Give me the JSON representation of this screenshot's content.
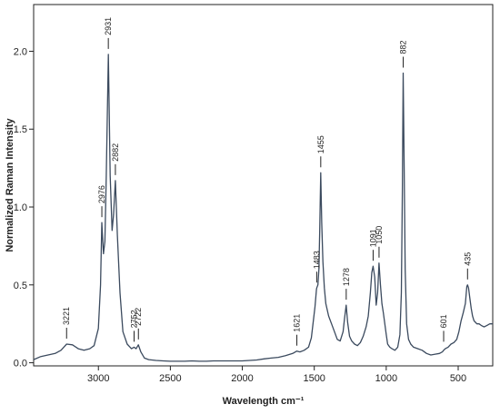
{
  "chart_data": {
    "type": "line",
    "title": "",
    "xlabel": "Wavelength cm⁻¹",
    "ylabel": "Normalized Raman Intensity",
    "xlim": [
      3450,
      260
    ],
    "ylim": [
      -0.02,
      2.3
    ],
    "x_reversed": true,
    "grid": false,
    "legend": "none",
    "line_color": "#3b4a5e",
    "x_ticks": [
      3000,
      2500,
      2000,
      1500,
      1000,
      500
    ],
    "y_ticks": [
      0.0,
      0.5,
      1.0,
      1.5,
      2.0
    ],
    "y_tick_labels": [
      "0.0",
      "0.5",
      "1.0",
      "1.5",
      "2.0"
    ],
    "series": [
      {
        "x": [
          3450,
          3400,
          3350,
          3300,
          3260,
          3221,
          3180,
          3140,
          3100,
          3060,
          3030,
          3000,
          2985,
          2976,
          2965,
          2955,
          2945,
          2931,
          2918,
          2905,
          2895,
          2882,
          2868,
          2850,
          2830,
          2800,
          2770,
          2752,
          2738,
          2722,
          2705,
          2680,
          2650,
          2600,
          2550,
          2500,
          2450,
          2400,
          2350,
          2300,
          2250,
          2200,
          2150,
          2100,
          2050,
          2000,
          1950,
          1900,
          1850,
          1800,
          1750,
          1700,
          1650,
          1621,
          1600,
          1570,
          1540,
          1520,
          1505,
          1495,
          1485,
          1483,
          1475,
          1468,
          1462,
          1455,
          1448,
          1440,
          1430,
          1420,
          1400,
          1380,
          1360,
          1340,
          1320,
          1300,
          1290,
          1278,
          1268,
          1255,
          1240,
          1220,
          1200,
          1180,
          1160,
          1140,
          1125,
          1110,
          1100,
          1091,
          1080,
          1070,
          1060,
          1050,
          1040,
          1030,
          1020,
          1010,
          1000,
          990,
          975,
          960,
          940,
          920,
          905,
          895,
          888,
          882,
          876,
          868,
          858,
          845,
          830,
          810,
          780,
          750,
          720,
          690,
          660,
          630,
          610,
          601,
          590,
          570,
          550,
          530,
          510,
          495,
          480,
          465,
          450,
          440,
          435,
          428,
          420,
          410,
          400,
          390,
          380,
          370,
          355,
          340,
          320,
          300,
          280,
          260
        ],
        "y": [
          0.02,
          0.04,
          0.05,
          0.06,
          0.08,
          0.12,
          0.115,
          0.09,
          0.08,
          0.09,
          0.11,
          0.22,
          0.5,
          0.9,
          0.7,
          0.78,
          1.2,
          1.98,
          1.2,
          0.85,
          0.95,
          1.17,
          0.82,
          0.45,
          0.2,
          0.12,
          0.09,
          0.1,
          0.09,
          0.115,
          0.07,
          0.03,
          0.02,
          0.015,
          0.012,
          0.01,
          0.01,
          0.01,
          0.012,
          0.01,
          0.01,
          0.012,
          0.012,
          0.012,
          0.012,
          0.012,
          0.015,
          0.018,
          0.025,
          0.03,
          0.035,
          0.045,
          0.06,
          0.075,
          0.07,
          0.08,
          0.1,
          0.16,
          0.28,
          0.36,
          0.47,
          0.48,
          0.5,
          0.6,
          0.85,
          1.22,
          0.9,
          0.65,
          0.48,
          0.38,
          0.3,
          0.25,
          0.2,
          0.15,
          0.14,
          0.2,
          0.28,
          0.37,
          0.26,
          0.17,
          0.14,
          0.12,
          0.11,
          0.13,
          0.17,
          0.23,
          0.3,
          0.45,
          0.58,
          0.62,
          0.55,
          0.37,
          0.45,
          0.64,
          0.5,
          0.38,
          0.32,
          0.25,
          0.18,
          0.12,
          0.1,
          0.09,
          0.08,
          0.1,
          0.18,
          0.45,
          1.1,
          1.86,
          1.3,
          0.6,
          0.25,
          0.15,
          0.12,
          0.1,
          0.09,
          0.08,
          0.06,
          0.05,
          0.055,
          0.06,
          0.07,
          0.08,
          0.09,
          0.1,
          0.12,
          0.13,
          0.15,
          0.2,
          0.27,
          0.32,
          0.38,
          0.49,
          0.5,
          0.48,
          0.42,
          0.35,
          0.3,
          0.27,
          0.26,
          0.25,
          0.25,
          0.24,
          0.23,
          0.24,
          0.25,
          0.25
        ]
      }
    ],
    "peak_labels": [
      {
        "label": "3221",
        "x": 3221,
        "y": 0.12
      },
      {
        "label": "2976",
        "x": 2976,
        "y": 0.9
      },
      {
        "label": "2931",
        "x": 2931,
        "y": 1.98
      },
      {
        "label": "2882",
        "x": 2882,
        "y": 1.17
      },
      {
        "label": "2752",
        "x": 2752,
        "y": 0.1
      },
      {
        "label": "2722",
        "x": 2722,
        "y": 0.115
      },
      {
        "label": "1621",
        "x": 1621,
        "y": 0.075
      },
      {
        "label": "1483",
        "x": 1483,
        "y": 0.48
      },
      {
        "label": "1455",
        "x": 1455,
        "y": 1.22
      },
      {
        "label": "1278",
        "x": 1278,
        "y": 0.37
      },
      {
        "label": "1091",
        "x": 1091,
        "y": 0.62
      },
      {
        "label": "1050",
        "x": 1050,
        "y": 0.64
      },
      {
        "label": "882",
        "x": 882,
        "y": 1.86
      },
      {
        "label": "601",
        "x": 601,
        "y": 0.1
      },
      {
        "label": "435",
        "x": 435,
        "y": 0.5
      }
    ]
  }
}
